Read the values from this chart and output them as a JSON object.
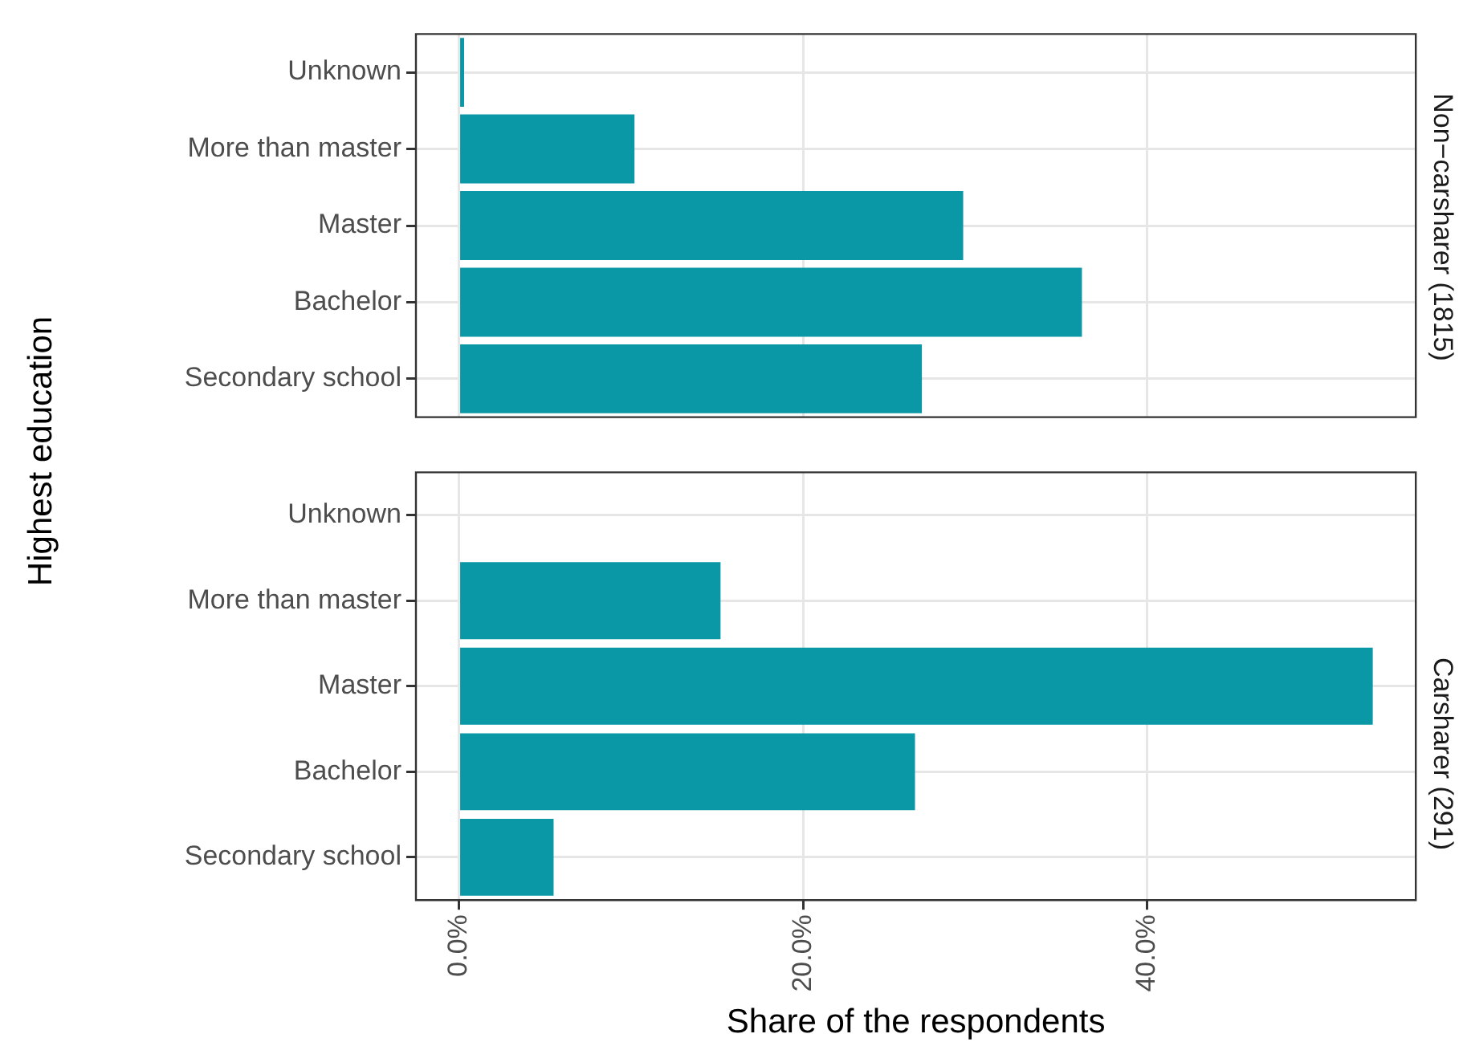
{
  "chart_data": [
    {
      "type": "bar",
      "orientation": "horizontal",
      "title": "Non−carsharer (1815)",
      "ylabel": "Highest education",
      "categories": [
        "Unknown",
        "More than master",
        "Master",
        "Bachelor",
        "Secondary school"
      ],
      "values": [
        0.3,
        10.2,
        29.3,
        36.2,
        26.9
      ],
      "color": "#0a98a6",
      "xlim": [
        -2.5,
        55.6
      ],
      "xticks": [
        {
          "value": 0,
          "label": null
        },
        {
          "value": 20,
          "label": null
        },
        {
          "value": 40,
          "label": null
        }
      ],
      "grid": true,
      "tick_labels": "y"
    },
    {
      "type": "bar",
      "orientation": "horizontal",
      "title": "Carsharer (291)",
      "xlabel": "Share of the respondents",
      "categories": [
        "Unknown",
        "More than master",
        "Master",
        "Bachelor",
        "Secondary school"
      ],
      "values": [
        0,
        15.2,
        53.1,
        26.5,
        5.5
      ],
      "color": "#0a98a6",
      "xlim": [
        -2.5,
        55.6
      ],
      "xticks": [
        {
          "value": 0,
          "label": "0.0%"
        },
        {
          "value": 20,
          "label": "20.0%"
        },
        {
          "value": 40,
          "label": "40.0%"
        }
      ],
      "grid": true
    }
  ]
}
